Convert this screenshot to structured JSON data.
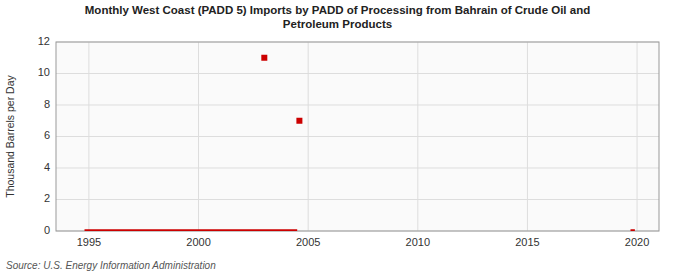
{
  "chart_data": {
    "type": "line",
    "title": "Monthly West Coast (PADD 5) Imports by PADD of Processing from Bahrain of Crude Oil and\nPetroleum Products",
    "y_label": "Thousand Barrels per Day",
    "source": "Source: U.S. Energy Information Administration",
    "xlim": [
      1993.5,
      2021
    ],
    "ylim": [
      0,
      12
    ],
    "xticks": [
      1995,
      2000,
      2005,
      2010,
      2015,
      2020
    ],
    "yticks": [
      0,
      2,
      4,
      6,
      8,
      10,
      12
    ],
    "grid": true,
    "series": [
      {
        "type": "line",
        "color": "#cc0000",
        "x": [
          1994.8,
          2004.5
        ],
        "values": [
          0,
          0
        ]
      },
      {
        "type": "line",
        "color": "#cc0000",
        "x": [
          2019.7,
          2019.9
        ],
        "values": [
          0,
          0
        ]
      },
      {
        "type": "scatter",
        "marker": "square",
        "color": "#cc0000",
        "x": [
          2003.0,
          2004.6
        ],
        "values": [
          11,
          7
        ]
      }
    ]
  }
}
